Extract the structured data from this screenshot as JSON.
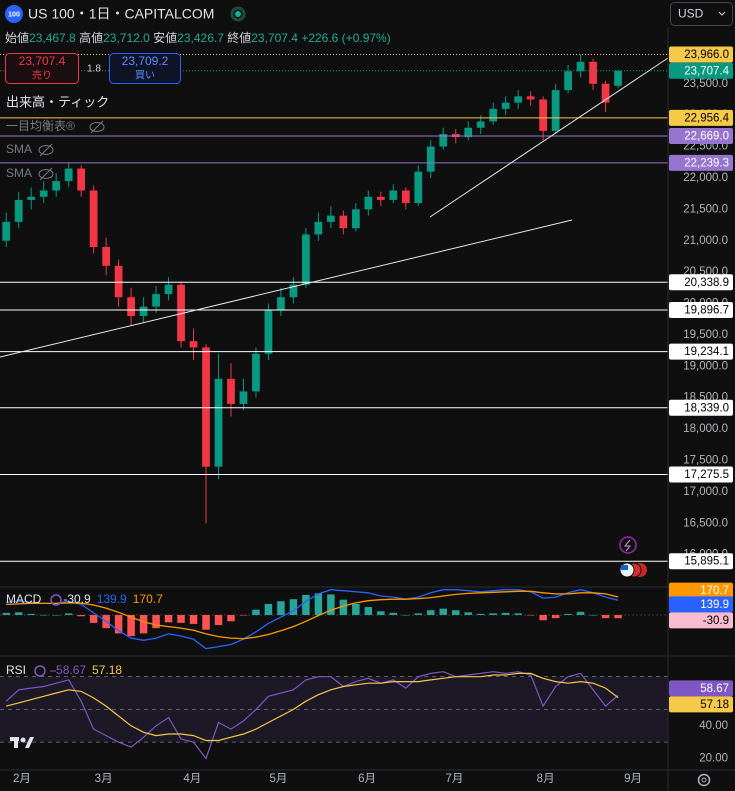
{
  "header": {
    "badge": "100",
    "title": "US 100・1日・CAPITALCOM",
    "ohlc": [
      {
        "label": "始値",
        "value": "23,467.8"
      },
      {
        "label": "高値",
        "value": "23,712.0"
      },
      {
        "label": "安値",
        "value": "23,426.7"
      },
      {
        "label": "終値",
        "value": "23,707.4"
      }
    ],
    "change": "+226.6 (+0.97%)"
  },
  "trade": {
    "sell_price": "23,707.4",
    "sell_label": "売り",
    "spread": "1.8",
    "buy_price": "23,709.2",
    "buy_label": "買い"
  },
  "currency": "USD",
  "indicators": [
    "出来高・ティック",
    "一目均衡表®",
    "SMA",
    "SMA"
  ],
  "chart_data": [
    {
      "type": "candlestick",
      "up_color": "#089981",
      "down_color": "#f23645",
      "open": [
        21000,
        21300,
        21650,
        21700,
        21800,
        21950,
        22150,
        21800,
        20900,
        20600,
        20100,
        19800,
        19950,
        20150,
        20300,
        19400,
        19300,
        17400,
        18800,
        18400,
        18600,
        19200,
        19900,
        20100,
        20300,
        21100,
        21300,
        21400,
        21200,
        21500,
        21700,
        21650,
        21800,
        21600,
        22100,
        22500,
        22700,
        22650,
        22800,
        22900,
        23100,
        23200,
        23300,
        23250,
        22750,
        23400,
        23700,
        23850,
        23500,
        23467.8
      ],
      "high": [
        21450,
        21780,
        21850,
        21950,
        22080,
        22250,
        22200,
        21880,
        21050,
        20700,
        20250,
        20100,
        20280,
        20420,
        20350,
        19600,
        19350,
        19200,
        19050,
        18800,
        19300,
        20000,
        20250,
        20420,
        21200,
        21450,
        21550,
        21480,
        21600,
        21800,
        21780,
        21900,
        21850,
        22200,
        22600,
        22800,
        22780,
        22900,
        23000,
        23200,
        23300,
        23400,
        23380,
        23300,
        23500,
        23800,
        23966,
        23900,
        23550,
        23712
      ],
      "low": [
        20900,
        21200,
        21500,
        21600,
        21700,
        21850,
        21700,
        20800,
        20450,
        19950,
        19650,
        19700,
        19850,
        20050,
        19300,
        19100,
        16500,
        17200,
        18200,
        18300,
        18500,
        19100,
        19800,
        20000,
        20250,
        21000,
        21200,
        21100,
        21150,
        21400,
        21550,
        21600,
        21500,
        21550,
        22000,
        22450,
        22550,
        22600,
        22700,
        22850,
        23000,
        23100,
        23150,
        22600,
        22700,
        23350,
        23600,
        23400,
        23050,
        23426.7
      ],
      "close": [
        21300,
        21650,
        21700,
        21800,
        21950,
        22150,
        21800,
        20900,
        20600,
        20100,
        19800,
        19950,
        20150,
        20300,
        19400,
        19300,
        17400,
        18800,
        18400,
        18600,
        19200,
        19900,
        20100,
        20300,
        21100,
        21300,
        21400,
        21200,
        21500,
        21700,
        21650,
        21800,
        21600,
        22100,
        22500,
        22700,
        22650,
        22800,
        22900,
        23100,
        23200,
        23300,
        23250,
        22750,
        23400,
        23700,
        23850,
        23500,
        23200,
        23707.4
      ],
      "xlim": [
        -0.5,
        53
      ],
      "xticks": [
        {
          "value": 1.26,
          "label": "2月"
        },
        {
          "value": 7.8,
          "label": "3月"
        },
        {
          "value": 14.9,
          "label": "4月"
        },
        {
          "value": 21.8,
          "label": "5月"
        },
        {
          "value": 28.9,
          "label": "6月"
        },
        {
          "value": 35.9,
          "label": "7月"
        },
        {
          "value": 43.2,
          "label": "8月"
        },
        {
          "value": 50.2,
          "label": "9月"
        }
      ],
      "ylim": [
        15500,
        24070
      ],
      "yticks": [
        {
          "value": 16000,
          "label": "16,000.0"
        },
        {
          "value": 16500,
          "label": "16,500.0"
        },
        {
          "value": 17000,
          "label": "17,000.0"
        },
        {
          "value": 17500,
          "label": "17,500.0"
        },
        {
          "value": 18000,
          "label": "18,000.0"
        },
        {
          "value": 18500,
          "label": "18,500.0"
        },
        {
          "value": 19000,
          "label": "19,000.0"
        },
        {
          "value": 19500,
          "label": "19,500.0"
        },
        {
          "value": 20000,
          "label": "20,000.0"
        },
        {
          "value": 20500,
          "label": "20,500.0"
        },
        {
          "value": 21000,
          "label": "21,000.0"
        },
        {
          "value": 21500,
          "label": "21,500.0"
        },
        {
          "value": 22000,
          "label": "22,000.0"
        },
        {
          "value": 22500,
          "label": "22,500.0"
        },
        {
          "value": 23000,
          "label": "23,000.0"
        },
        {
          "value": 23500,
          "label": "23,500.0"
        }
      ],
      "levels": [
        {
          "value": 23966.0,
          "label": "23,966.0",
          "color": "#f7c948",
          "dash": true
        },
        {
          "value": 23707.4,
          "label": "23,707.4",
          "color": "#089981",
          "dash": true
        },
        {
          "value": 22956.4,
          "label": "22,956.4",
          "color": "#f7c948",
          "dash": false
        },
        {
          "value": 22669.0,
          "label": "22,669.0",
          "color": "#9575cd",
          "dash": false
        },
        {
          "value": 22239.3,
          "label": "22,239.3",
          "color": "#9575cd",
          "dash": false
        },
        {
          "value": 20338.9,
          "label": "20,338.9",
          "color": "#ffffff",
          "dash": false
        },
        {
          "value": 19896.7,
          "label": "19,896.7",
          "color": "#ffffff",
          "dash": false
        },
        {
          "value": 19234.1,
          "label": "19,234.1",
          "color": "#ffffff",
          "dash": false
        },
        {
          "value": 18339.0,
          "label": "18,339.0",
          "color": "#ffffff",
          "dash": false
        },
        {
          "value": 17275.5,
          "label": "17,275.5",
          "color": "#ffffff",
          "dash": false
        },
        {
          "value": 15895.1,
          "label": "15,895.1",
          "color": "#ffffff",
          "dash": false
        }
      ]
    },
    {
      "type": "macd",
      "name": "MACD",
      "histogram": {
        "pos_color": "#26a69a",
        "neg_color": "#ff5252",
        "values": [
          20,
          25,
          10,
          0,
          0,
          15,
          -12,
          -75,
          -125,
          -175,
          -200,
          -175,
          -125,
          -70,
          -75,
          -85,
          -140,
          -95,
          -60,
          -5,
          50,
          105,
          130,
          150,
          190,
          205,
          195,
          145,
          105,
          75,
          35,
          20,
          0,
          15,
          45,
          60,
          45,
          25,
          10,
          15,
          20,
          15,
          -5,
          -50,
          -30,
          10,
          30,
          0,
          -30,
          -30.9
        ]
      },
      "series": [
        {
          "color": "#2962ff",
          "values": [
            120,
            130,
            120,
            110,
            110,
            130,
            100,
            20,
            -60,
            -150,
            -220,
            -240,
            -220,
            -180,
            -200,
            -230,
            -320,
            -300,
            -280,
            -230,
            -160,
            -80,
            -20,
            40,
            130,
            200,
            240,
            230,
            220,
            210,
            180,
            170,
            150,
            170,
            210,
            240,
            240,
            230,
            220,
            230,
            240,
            240,
            220,
            160,
            170,
            210,
            240,
            210,
            170,
            139.9
          ]
        },
        {
          "color": "#ff9800",
          "values": [
            100,
            105,
            110,
            110,
            110,
            115,
            112,
            95,
            65,
            25,
            -20,
            -65,
            -95,
            -110,
            -125,
            -145,
            -180,
            -205,
            -220,
            -225,
            -210,
            -185,
            -150,
            -110,
            -60,
            -5,
            45,
            85,
            115,
            135,
            145,
            150,
            150,
            155,
            165,
            180,
            195,
            205,
            210,
            215,
            220,
            225,
            225,
            210,
            200,
            200,
            210,
            210,
            200,
            170.7
          ]
        }
      ],
      "value_labels": [
        "-30.9",
        "139.9",
        "170.7"
      ],
      "ylim": [
        -380,
        275
      ]
    },
    {
      "type": "rsi",
      "name": "RSI",
      "series": [
        {
          "color": "#7e57c2",
          "values": [
            55,
            62,
            63,
            64,
            66,
            68,
            55,
            38,
            34,
            30,
            27,
            33,
            40,
            45,
            32,
            30,
            20,
            42,
            38,
            43,
            50,
            58,
            60,
            62,
            68,
            70,
            70,
            64,
            67,
            69,
            66,
            68,
            63,
            70,
            72,
            73,
            70,
            71,
            72,
            73,
            72,
            73,
            71,
            52,
            64,
            70,
            72,
            62,
            52,
            58.67
          ]
        },
        {
          "color": "#f7c948",
          "values": [
            52,
            54,
            56,
            58,
            60,
            62,
            61,
            57,
            52,
            46,
            40,
            36,
            34,
            35,
            35,
            34,
            31,
            31,
            33,
            35,
            38,
            42,
            46,
            50,
            55,
            59,
            62,
            64,
            65,
            66,
            66,
            67,
            67,
            67,
            68,
            69,
            70,
            70,
            70,
            71,
            71,
            72,
            72,
            69,
            67,
            66,
            67,
            66,
            63,
            57.18
          ]
        }
      ],
      "value_labels": [
        "58.67",
        "57.18"
      ],
      "ylim": [
        13,
        82
      ],
      "yticks": [
        {
          "value": 40,
          "label": "40.00"
        },
        {
          "value": 20,
          "label": "20.00"
        }
      ],
      "bands": [
        70,
        50,
        30
      ]
    }
  ]
}
